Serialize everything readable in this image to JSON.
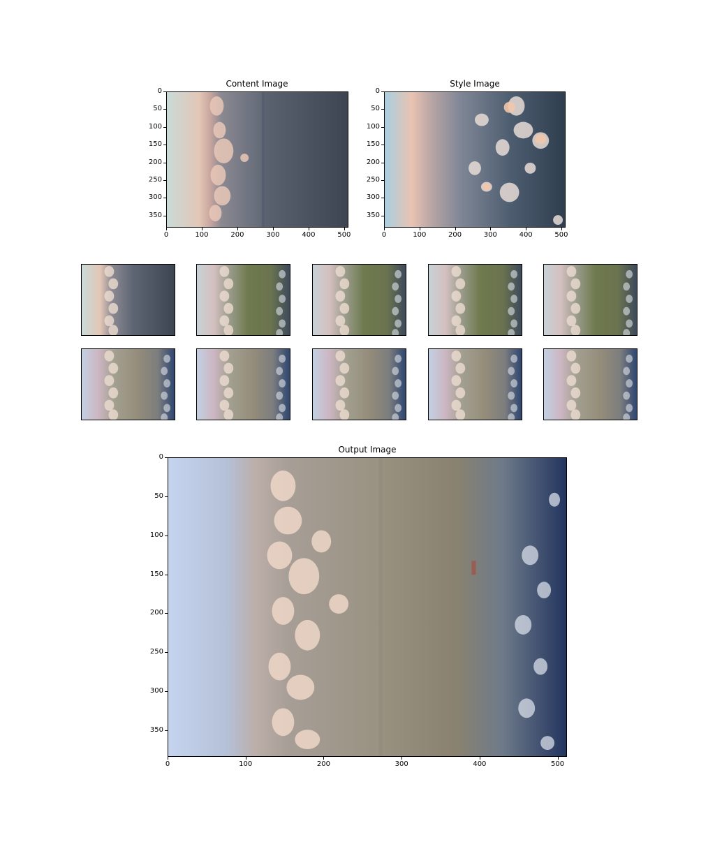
{
  "content_panel": {
    "title": "Content Image",
    "x_ticks": [
      "0",
      "100",
      "200",
      "300",
      "400",
      "500"
    ],
    "y_ticks": [
      "0",
      "50",
      "100",
      "150",
      "200",
      "250",
      "300",
      "350"
    ]
  },
  "style_panel": {
    "title": "Style Image",
    "x_ticks": [
      "0",
      "100",
      "200",
      "300",
      "400",
      "500"
    ],
    "y_ticks": [
      "0",
      "50",
      "100",
      "150",
      "200",
      "250",
      "300",
      "350"
    ]
  },
  "output_panel": {
    "title": "Output Image",
    "x_ticks": [
      "0",
      "100",
      "200",
      "300",
      "400",
      "500"
    ],
    "y_ticks": [
      "0",
      "50",
      "100",
      "150",
      "200",
      "250",
      "300",
      "350"
    ]
  },
  "thumbnail_count": 10
}
